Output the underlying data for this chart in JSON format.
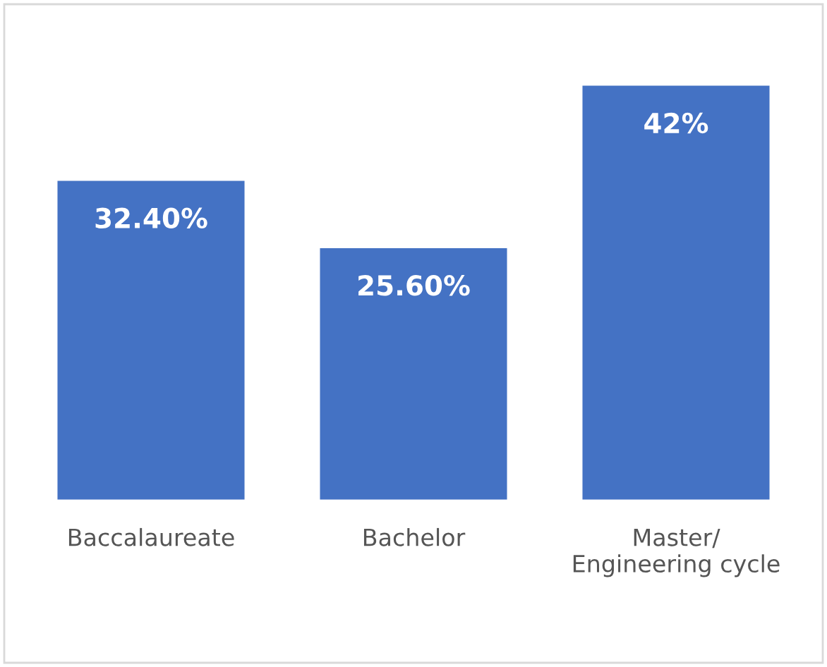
{
  "chart_data": {
    "type": "bar",
    "categories": [
      "Baccalaureate",
      "Bachelor",
      "Master/\nEngineering cycle"
    ],
    "values": [
      32.4,
      25.6,
      42
    ],
    "value_labels": [
      "32.40%",
      "25.60%",
      "42%"
    ],
    "color": "#4472c4",
    "grid": false,
    "legend": false
  }
}
